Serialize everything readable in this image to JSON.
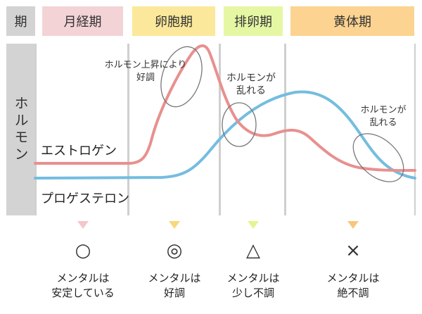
{
  "header": {
    "period_label": "期",
    "phases": [
      {
        "name": "月経期",
        "color": "#f3d3d6"
      },
      {
        "name": "卵胞期",
        "color": "#fbe89a"
      },
      {
        "name": "排卵期",
        "color": "#e6f7a4"
      },
      {
        "name": "黄体期",
        "color": "#fcd391"
      }
    ]
  },
  "side": {
    "label": "ホルモン"
  },
  "curves": {
    "estrogen": {
      "name": "エストロゲン",
      "color": "#e8908e"
    },
    "progesterone": {
      "name": "プロゲステロン",
      "color": "#74bde0"
    }
  },
  "annotations": {
    "rise_line1": "ホルモン上昇により",
    "rise_line2": "好調",
    "disturb1_line1": "ホルモンが",
    "disturb1_line2": "乱れる",
    "disturb2_line1": "ホルモンが",
    "disturb2_line2": "乱れる"
  },
  "mental": [
    {
      "symbol": "○",
      "line1": "メンタルは",
      "line2": "安定している",
      "marker_color": "#f3c6cb"
    },
    {
      "symbol": "◎",
      "line1": "メンタルは",
      "line2": "好調",
      "marker_color": "#f7d87a"
    },
    {
      "symbol": "△",
      "line1": "メンタルは",
      "line2": "少し不調",
      "marker_color": "#e4f58f"
    },
    {
      "symbol": "×",
      "line1": "メンタルは",
      "line2": "絶不調",
      "marker_color": "#f7c77e"
    }
  ]
}
